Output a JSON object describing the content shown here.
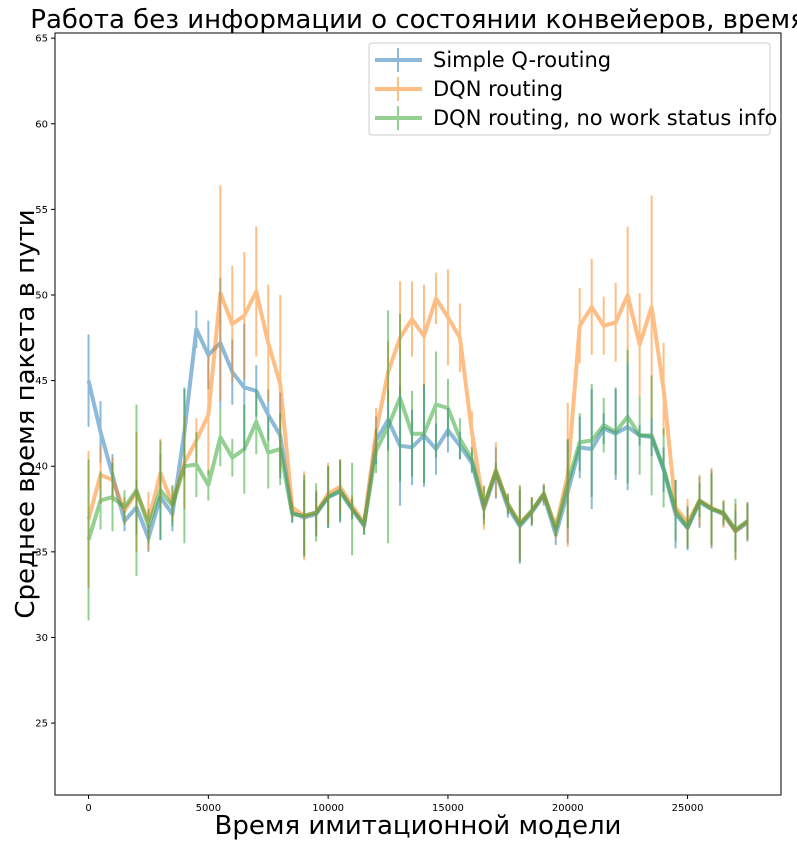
{
  "chart_data": {
    "type": "line",
    "title": "Работа без информации о состоянии конвейеров, время",
    "xlabel": "Время имитационной модели",
    "ylabel": "Среднее время пакета в пути",
    "xlim": [
      -1400,
      28900
    ],
    "ylim": [
      20.8,
      65.3
    ],
    "xticks": [
      0,
      5000,
      10000,
      15000,
      20000,
      25000
    ],
    "yticks": [
      25,
      30,
      35,
      40,
      45,
      50,
      55,
      60,
      65
    ],
    "grid": false,
    "legend_position": "top-right",
    "x": [
      0,
      500,
      1000,
      1500,
      2000,
      2500,
      3000,
      3500,
      4000,
      4500,
      5000,
      5500,
      6000,
      6500,
      7000,
      7500,
      8000,
      8500,
      9000,
      9500,
      10000,
      10500,
      11000,
      11500,
      12000,
      12500,
      13000,
      13500,
      14000,
      14500,
      15000,
      15500,
      16000,
      16500,
      17000,
      17500,
      18000,
      18500,
      19000,
      19500,
      20000,
      20500,
      21000,
      21500,
      22000,
      22500,
      23000,
      23500,
      24000,
      24500,
      25000,
      25500,
      26000,
      26500,
      27000,
      27500
    ],
    "series": [
      {
        "name": "Simple Q-routing",
        "color": "#1f77b4",
        "values": [
          45.0,
          42.0,
          39.5,
          36.8,
          37.6,
          35.8,
          38.2,
          37.2,
          42.0,
          48.0,
          46.5,
          47.2,
          45.5,
          44.6,
          44.4,
          43.0,
          41.8,
          37.3,
          37.0,
          37.2,
          38.2,
          38.5,
          37.5,
          36.5,
          41.5,
          42.7,
          41.2,
          41.1,
          41.8,
          41.0,
          42.1,
          41.2,
          40.2,
          37.5,
          39.6,
          37.6,
          36.5,
          37.3,
          38.3,
          36.0,
          38.5,
          41.1,
          41.0,
          42.2,
          41.9,
          42.3,
          41.8,
          41.7,
          39.8,
          37.2,
          36.4,
          37.9,
          37.5,
          37.2,
          36.2,
          36.7
        ],
        "errors": [
          2.7,
          1.8,
          1.2,
          0.6,
          1.6,
          0.8,
          2.5,
          1.0,
          2.6,
          1.1,
          2.0,
          3.8,
          1.9,
          3.7,
          1.5,
          1.5,
          2.5,
          0.6,
          2.2,
          1.3,
          1.8,
          1.8,
          0.6,
          0.5,
          1.4,
          1.8,
          3.5,
          2.2,
          3.0,
          1.5,
          1.3,
          0.8,
          0.6,
          0.6,
          1.5,
          0.6,
          2.1,
          0.8,
          0.6,
          0.6,
          3.0,
          1.8,
          3.5,
          0.9,
          2.7,
          3.7,
          0.6,
          1.1,
          1.3,
          2.0,
          1.3,
          1.5,
          2.3,
          0.7,
          1.2,
          1.1
        ]
      },
      {
        "name": "DQN routing",
        "color": "#ff7f0e",
        "values": [
          36.9,
          39.5,
          39.2,
          37.4,
          38.5,
          36.8,
          39.6,
          37.8,
          40.2,
          41.5,
          43.0,
          50.1,
          48.3,
          48.8,
          50.2,
          47.2,
          44.8,
          37.6,
          37.1,
          37.3,
          38.4,
          38.8,
          37.7,
          36.7,
          42.0,
          45.5,
          47.5,
          48.6,
          47.6,
          49.8,
          48.7,
          47.5,
          42.0,
          37.6,
          39.8,
          37.8,
          36.7,
          37.4,
          38.4,
          36.4,
          39.5,
          48.2,
          49.3,
          48.2,
          48.4,
          50.0,
          47.1,
          49.3,
          44.5,
          37.6,
          36.7,
          38.0,
          37.6,
          37.2,
          36.2,
          36.8
        ],
        "errors": [
          4.0,
          1.7,
          1.3,
          0.8,
          3.5,
          1.7,
          2.0,
          1.0,
          2.7,
          1.3,
          3.5,
          6.3,
          3.4,
          3.7,
          3.8,
          3.4,
          5.2,
          0.6,
          2.6,
          1.3,
          1.8,
          1.6,
          0.6,
          0.5,
          1.4,
          1.8,
          3.3,
          2.2,
          3.0,
          1.5,
          2.8,
          2.0,
          1.2,
          1.3,
          1.6,
          0.6,
          2.1,
          0.8,
          0.6,
          0.6,
          4.2,
          2.2,
          2.8,
          1.7,
          2.3,
          4.0,
          3.0,
          6.5,
          2.7,
          0.5,
          1.4,
          1.5,
          2.3,
          0.8,
          1.6,
          1.1
        ]
      },
      {
        "name": "DQN routing, no work status info",
        "color": "#2ca02c",
        "values": [
          35.7,
          38.0,
          38.2,
          37.6,
          38.6,
          36.5,
          38.6,
          37.7,
          40.0,
          40.1,
          38.9,
          41.7,
          40.5,
          41.0,
          42.6,
          40.8,
          41.0,
          37.2,
          37.1,
          37.3,
          38.2,
          38.6,
          37.5,
          36.6,
          40.9,
          42.3,
          44.0,
          41.9,
          41.9,
          43.6,
          43.4,
          41.6,
          40.4,
          37.7,
          39.7,
          37.8,
          36.6,
          37.4,
          38.4,
          36.3,
          39.0,
          41.4,
          41.5,
          42.4,
          42.0,
          42.9,
          41.8,
          41.8,
          39.9,
          37.4,
          36.4,
          38.0,
          37.5,
          37.3,
          36.3,
          36.8
        ],
        "errors": [
          4.7,
          1.7,
          2.0,
          1.0,
          5.0,
          1.0,
          2.9,
          1.2,
          4.5,
          1.9,
          0.9,
          1.7,
          1.1,
          2.6,
          1.9,
          2.1,
          2.1,
          0.5,
          2.4,
          1.7,
          1.8,
          1.8,
          2.7,
          0.6,
          1.3,
          6.8,
          4.9,
          2.5,
          2.9,
          3.1,
          1.7,
          1.2,
          0.7,
          1.1,
          0.5,
          0.6,
          2.3,
          0.8,
          0.5,
          0.4,
          2.6,
          1.7,
          3.3,
          1.6,
          2.5,
          3.9,
          2.3,
          3.5,
          2.3,
          1.8,
          1.2,
          1.0,
          2.1,
          0.7,
          1.8,
          1.1
        ]
      }
    ]
  }
}
